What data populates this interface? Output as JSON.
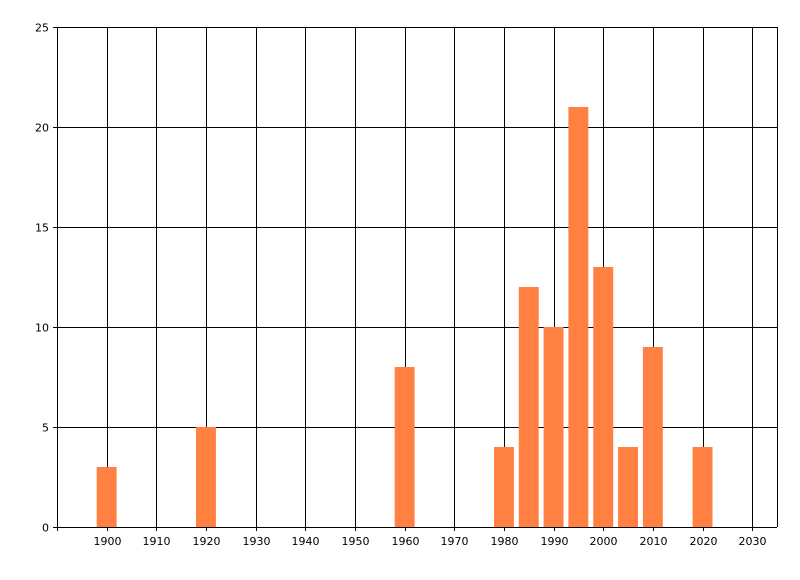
{
  "chart_data": {
    "type": "bar",
    "title": "",
    "xlabel": "",
    "ylabel": "",
    "x": [
      1900,
      1920,
      1960,
      1980,
      1985,
      1990,
      1995,
      2000,
      2005,
      2010,
      2020
    ],
    "values": [
      3,
      5,
      8,
      4,
      12,
      10,
      21,
      13,
      4,
      9,
      4
    ],
    "xlim": [
      1890,
      2035
    ],
    "ylim": [
      0,
      25
    ],
    "x_ticks": [
      1900,
      1910,
      1920,
      1930,
      1940,
      1950,
      1960,
      1970,
      1980,
      1990,
      2000,
      2010,
      2020,
      2030
    ],
    "y_ticks": [
      0,
      5,
      10,
      15,
      20,
      25
    ],
    "bar_width_years": 4,
    "grid": true,
    "bar_color": "#FF8040",
    "grid_color": "#000000"
  }
}
